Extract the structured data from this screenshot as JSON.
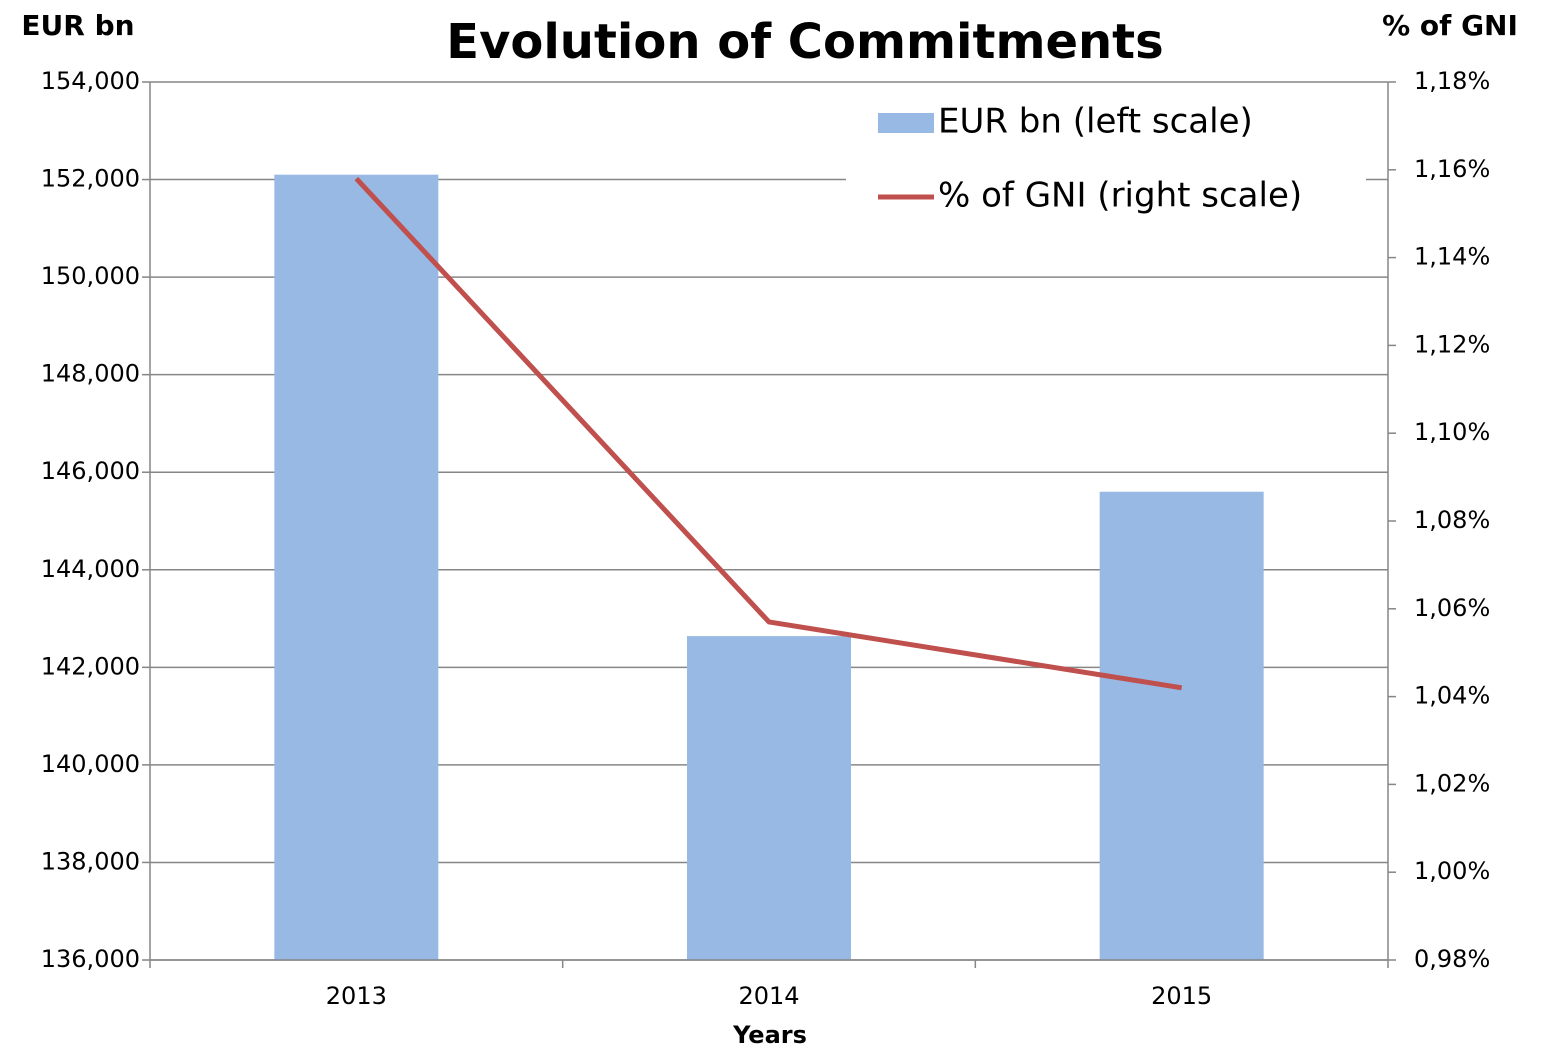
{
  "chart_data": {
    "type": "bar-line",
    "title": "Evolution of Commitments",
    "y_label": "EUR bn",
    "y2_label": "% of GNI",
    "x_label": "Years",
    "categories": [
      "2013",
      "2014",
      "2015"
    ],
    "series": [
      {
        "name": "EUR bn (left scale)",
        "type": "bar",
        "color": "#98b9e3",
        "values": [
          152100,
          142640,
          145600
        ]
      },
      {
        "name": "% of GNI (right scale)",
        "type": "line",
        "color": "#c0504d",
        "axis": "y2",
        "values": [
          1.158,
          1.057,
          1.042
        ]
      }
    ],
    "ylim": [
      136000,
      154000
    ],
    "yticks": [
      {
        "value": 136000,
        "label": "136,000"
      },
      {
        "value": 138000,
        "label": "138,000"
      },
      {
        "value": 140000,
        "label": "140,000"
      },
      {
        "value": 142000,
        "label": "142,000"
      },
      {
        "value": 144000,
        "label": "144,000"
      },
      {
        "value": 146000,
        "label": "146,000"
      },
      {
        "value": 148000,
        "label": "148,000"
      },
      {
        "value": 150000,
        "label": "150,000"
      },
      {
        "value": 152000,
        "label": "152,000"
      },
      {
        "value": 154000,
        "label": "154,000"
      }
    ],
    "y2lim": [
      0.98,
      1.18
    ],
    "y2ticks": [
      {
        "value": 0.98,
        "label": "0,98%"
      },
      {
        "value": 1.0,
        "label": "1,00%"
      },
      {
        "value": 1.02,
        "label": "1,02%"
      },
      {
        "value": 1.04,
        "label": "1,04%"
      },
      {
        "value": 1.06,
        "label": "1,06%"
      },
      {
        "value": 1.08,
        "label": "1,08%"
      },
      {
        "value": 1.1,
        "label": "1,10%"
      },
      {
        "value": 1.12,
        "label": "1,12%"
      },
      {
        "value": 1.14,
        "label": "1,14%"
      },
      {
        "value": 1.16,
        "label": "1,16%"
      },
      {
        "value": 1.18,
        "label": "1,18%"
      }
    ],
    "grid": true,
    "legend": "top-right"
  }
}
